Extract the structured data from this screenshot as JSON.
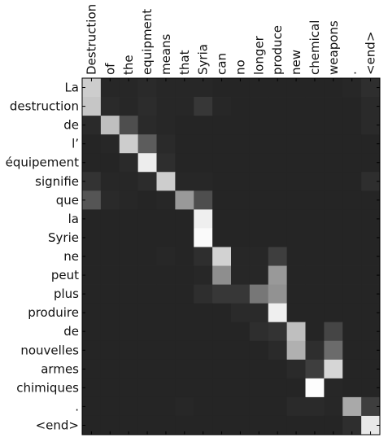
{
  "chart_data": {
    "type": "heatmap",
    "title": "",
    "xlabel": "",
    "ylabel": "",
    "x_labels": [
      "Destruction",
      "of",
      "the",
      "equipment",
      "means",
      "that",
      "Syria",
      "can",
      "no",
      "longer",
      "produce",
      "new",
      "chemical",
      "weapons",
      ".",
      "<end>"
    ],
    "y_labels": [
      "La",
      "destruction",
      "de",
      "l’",
      "équipement",
      "signifie",
      "que",
      "la",
      "Syrie",
      "ne",
      "peut",
      "plus",
      "produire",
      "de",
      "nouvelles",
      "armes",
      "chimiques",
      ".",
      "<end>"
    ],
    "value_range": [
      0,
      1
    ],
    "colormap": "gray",
    "values": [
      [
        0.78,
        0.05,
        0.05,
        0.06,
        0.05,
        0.05,
        0.05,
        0.04,
        0.04,
        0.04,
        0.04,
        0.04,
        0.04,
        0.04,
        0.05,
        0.08
      ],
      [
        0.75,
        0.06,
        0.05,
        0.07,
        0.05,
        0.05,
        0.12,
        0.05,
        0.04,
        0.04,
        0.04,
        0.04,
        0.04,
        0.04,
        0.04,
        0.06
      ],
      [
        0.06,
        0.72,
        0.22,
        0.06,
        0.05,
        0.04,
        0.04,
        0.04,
        0.04,
        0.04,
        0.04,
        0.04,
        0.04,
        0.04,
        0.04,
        0.06
      ],
      [
        0.04,
        0.05,
        0.78,
        0.28,
        0.06,
        0.04,
        0.04,
        0.04,
        0.04,
        0.04,
        0.04,
        0.04,
        0.04,
        0.04,
        0.04,
        0.04
      ],
      [
        0.04,
        0.04,
        0.06,
        0.92,
        0.08,
        0.04,
        0.04,
        0.04,
        0.04,
        0.04,
        0.04,
        0.04,
        0.04,
        0.04,
        0.04,
        0.04
      ],
      [
        0.1,
        0.05,
        0.05,
        0.07,
        0.78,
        0.05,
        0.05,
        0.04,
        0.04,
        0.04,
        0.04,
        0.04,
        0.04,
        0.04,
        0.04,
        0.08
      ],
      [
        0.25,
        0.06,
        0.05,
        0.04,
        0.05,
        0.55,
        0.22,
        0.04,
        0.04,
        0.04,
        0.04,
        0.04,
        0.04,
        0.04,
        0.04,
        0.04
      ],
      [
        0.04,
        0.04,
        0.04,
        0.04,
        0.04,
        0.04,
        0.93,
        0.04,
        0.04,
        0.04,
        0.04,
        0.04,
        0.04,
        0.04,
        0.04,
        0.04
      ],
      [
        0.04,
        0.04,
        0.04,
        0.04,
        0.04,
        0.04,
        0.98,
        0.04,
        0.04,
        0.04,
        0.04,
        0.04,
        0.04,
        0.04,
        0.04,
        0.04
      ],
      [
        0.04,
        0.04,
        0.04,
        0.04,
        0.05,
        0.04,
        0.08,
        0.8,
        0.05,
        0.05,
        0.15,
        0.04,
        0.04,
        0.04,
        0.04,
        0.04
      ],
      [
        0.04,
        0.04,
        0.04,
        0.04,
        0.04,
        0.04,
        0.05,
        0.5,
        0.05,
        0.05,
        0.55,
        0.04,
        0.04,
        0.04,
        0.04,
        0.04
      ],
      [
        0.04,
        0.04,
        0.04,
        0.04,
        0.04,
        0.04,
        0.08,
        0.12,
        0.12,
        0.4,
        0.52,
        0.04,
        0.04,
        0.04,
        0.04,
        0.04
      ],
      [
        0.04,
        0.04,
        0.04,
        0.04,
        0.04,
        0.04,
        0.04,
        0.04,
        0.06,
        0.06,
        0.93,
        0.04,
        0.04,
        0.04,
        0.04,
        0.04
      ],
      [
        0.04,
        0.04,
        0.04,
        0.04,
        0.04,
        0.04,
        0.04,
        0.04,
        0.04,
        0.08,
        0.1,
        0.72,
        0.04,
        0.18,
        0.04,
        0.04
      ],
      [
        0.04,
        0.04,
        0.04,
        0.04,
        0.04,
        0.04,
        0.04,
        0.04,
        0.04,
        0.04,
        0.06,
        0.65,
        0.08,
        0.35,
        0.04,
        0.04
      ],
      [
        0.04,
        0.04,
        0.04,
        0.04,
        0.04,
        0.04,
        0.04,
        0.04,
        0.04,
        0.04,
        0.04,
        0.06,
        0.15,
        0.82,
        0.04,
        0.04
      ],
      [
        0.04,
        0.04,
        0.04,
        0.04,
        0.04,
        0.04,
        0.04,
        0.04,
        0.04,
        0.04,
        0.04,
        0.04,
        0.99,
        0.05,
        0.04,
        0.04
      ],
      [
        0.04,
        0.04,
        0.04,
        0.04,
        0.04,
        0.05,
        0.04,
        0.04,
        0.04,
        0.04,
        0.04,
        0.06,
        0.06,
        0.05,
        0.62,
        0.15
      ],
      [
        0.04,
        0.04,
        0.04,
        0.04,
        0.04,
        0.04,
        0.04,
        0.04,
        0.04,
        0.04,
        0.04,
        0.04,
        0.04,
        0.04,
        0.08,
        0.9
      ]
    ]
  }
}
